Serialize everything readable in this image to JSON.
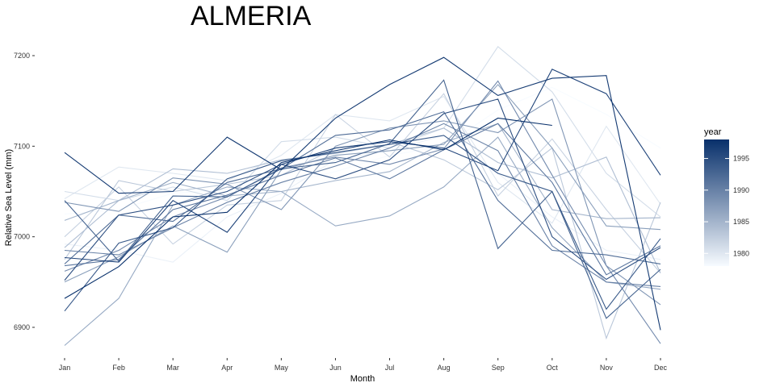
{
  "chart_data": {
    "type": "line",
    "title": "ALMERIA",
    "xlabel": "Month",
    "ylabel": "Relative Sea Level (mm)",
    "categories": [
      "Jan",
      "Feb",
      "Mar",
      "Apr",
      "May",
      "Jun",
      "Jul",
      "Aug",
      "Sep",
      "Oct",
      "Nov",
      "Dec"
    ],
    "y_ticks": [
      6900,
      7000,
      7100,
      7200
    ],
    "ylim": [
      6875,
      7220
    ],
    "grid": false,
    "legend": {
      "title": "year",
      "type": "colorbar",
      "placement": "right",
      "ticks": [
        1980,
        1985,
        1990,
        1995
      ],
      "range": [
        1978,
        1998
      ],
      "color_low": "#f7fbff",
      "color_high": "#08306b"
    },
    "series": [
      {
        "year": 1978,
        "values": [
          7025,
          7030,
          7048,
          7052,
          7058,
          7072,
          7090,
          7100,
          7140,
          7165,
          7135,
          7098
        ]
      },
      {
        "year": 1979,
        "values": [
          6992,
          6985,
          6972,
          7022,
          7048,
          7085,
          7095,
          7112,
          7070,
          7022,
          6985,
          6975
        ]
      },
      {
        "year": 1980,
        "values": [
          7042,
          7077,
          7070,
          7062,
          7090,
          7135,
          7128,
          7155,
          7060,
          7015,
          7122,
          7036
        ]
      },
      {
        "year": 1981,
        "values": [
          7050,
          7040,
          7055,
          7040,
          7105,
          7110,
          7098,
          7120,
          7210,
          7160,
          7070,
          7022
        ]
      },
      {
        "year": 1982,
        "values": [
          7000,
          7055,
          6992,
          7035,
          7040,
          7135,
          7088,
          7158,
          7045,
          7108,
          7030,
          6960
        ]
      },
      {
        "year": 1983,
        "values": [
          6975,
          7062,
          7050,
          7058,
          7068,
          7098,
          7105,
          7085,
          7052,
          7098,
          6888,
          7038
        ]
      },
      {
        "year": 1984,
        "values": [
          6988,
          7040,
          7075,
          7070,
          7085,
          7092,
          7102,
          7120,
          7082,
          7065,
          7088,
          6960
        ]
      },
      {
        "year": 1985,
        "values": [
          7018,
          7040,
          7060,
          7045,
          7050,
          7062,
          7072,
          7104,
          7125,
          7030,
          7020,
          7021
        ]
      },
      {
        "year": 1986,
        "values": [
          6880,
          6932,
          7035,
          7055,
          7050,
          7012,
          7023,
          7055,
          7110,
          7010,
          6950,
          6942
        ]
      },
      {
        "year": 1987,
        "values": [
          6950,
          6978,
          7012,
          6983,
          7074,
          7090,
          7095,
          7102,
          7168,
          7098,
          7012,
          7008
        ]
      },
      {
        "year": 1988,
        "values": [
          7038,
          7028,
          7065,
          7058,
          7030,
          7100,
          7120,
          7128,
          7115,
          7152,
          6968,
          6925
        ]
      },
      {
        "year": 1989,
        "values": [
          6962,
          6985,
          7022,
          7044,
          7076,
          7088,
          7080,
          7097,
          7172,
          7068,
          6968,
          6882
        ]
      },
      {
        "year": 1990,
        "values": [
          6985,
          6980,
          7010,
          7038,
          7060,
          7078,
          7098,
          7125,
          7095,
          6990,
          6950,
          6945
        ]
      },
      {
        "year": 1991,
        "values": [
          6968,
          6975,
          7030,
          7046,
          7068,
          7087,
          7064,
          7096,
          7125,
          7060,
          6958,
          6990
        ]
      },
      {
        "year": 1992,
        "values": [
          6970,
          7024,
          7017,
          7060,
          7075,
          7112,
          7118,
          7138,
          7040,
          6985,
          6980,
          6970
        ]
      },
      {
        "year": 1993,
        "values": [
          7040,
          6973,
          7045,
          7044,
          7075,
          7082,
          7103,
          7173,
          6987,
          7050,
          6910,
          6964
        ]
      },
      {
        "year": 1994,
        "values": [
          6918,
          6993,
          7010,
          7064,
          7084,
          7093,
          7102,
          7112,
          7070,
          7050,
          6920,
          6998
        ]
      },
      {
        "year": 1995,
        "values": [
          6952,
          7024,
          7035,
          7050,
          7080,
          7064,
          7085,
          7136,
          7152,
          7000,
          6953,
          6988
        ]
      },
      {
        "year": 1996,
        "values": [
          6977,
          6972,
          7040,
          7005,
          7080,
          7098,
          7105,
          7098,
          7073,
          7185,
          7158,
          7068
        ]
      },
      {
        "year": 1997,
        "values": [
          7093,
          7048,
          7050,
          7110,
          7074,
          7131,
          7168,
          7198,
          7156,
          7175,
          7178,
          6897
        ]
      },
      {
        "year": 1998,
        "values": [
          6932,
          6967,
          7022,
          7027,
          7082,
          7095,
          7107,
          7096,
          7131,
          7123,
          null,
          null
        ]
      }
    ]
  }
}
